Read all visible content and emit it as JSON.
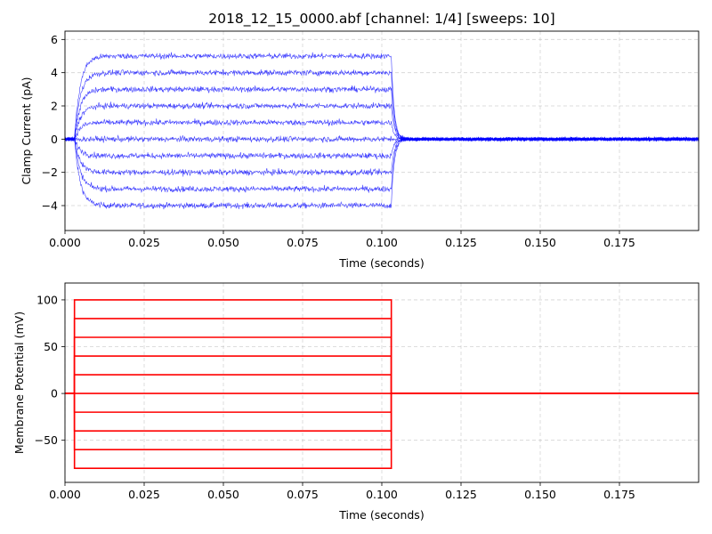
{
  "figure_title": "2018_12_15_0000.abf [channel: 1/4] [sweeps: 10]",
  "colors": {
    "current": "#0000ff",
    "voltage": "#ff0000",
    "grid": "#b0b0b0"
  },
  "chart_data": [
    {
      "type": "line",
      "panel": "top",
      "title": "2018_12_15_0000.abf [channel: 1/4] [sweeps: 10]",
      "xlabel": "Time (seconds)",
      "ylabel": "Clamp Current (pA)",
      "xlim": [
        0,
        0.2
      ],
      "ylim": [
        -5.5,
        6.5
      ],
      "xticks": [
        "0.000",
        "0.025",
        "0.050",
        "0.075",
        "0.100",
        "0.125",
        "0.150",
        "0.175"
      ],
      "yticks": [
        "−4",
        "−2",
        "0",
        "2",
        "4",
        "6"
      ],
      "grid": true,
      "step_on": 0.003,
      "step_off": 0.103,
      "series": [
        {
          "plateau": -4.0
        },
        {
          "plateau": -3.0
        },
        {
          "plateau": -2.0
        },
        {
          "plateau": -1.0
        },
        {
          "plateau": 0.0
        },
        {
          "plateau": 1.0
        },
        {
          "plateau": 2.0
        },
        {
          "plateau": 3.0
        },
        {
          "plateau": 4.0
        },
        {
          "plateau": 5.0
        }
      ]
    },
    {
      "type": "line",
      "panel": "bottom",
      "xlabel": "Time (seconds)",
      "ylabel": "Membrane Potential (mV)",
      "xlim": [
        0,
        0.2
      ],
      "ylim": [
        -95,
        118
      ],
      "xticks": [
        "0.000",
        "0.025",
        "0.050",
        "0.075",
        "0.100",
        "0.125",
        "0.150",
        "0.175"
      ],
      "yticks": [
        "−50",
        "0",
        "50",
        "100"
      ],
      "grid": true,
      "step_on": 0.003,
      "step_off": 0.103,
      "series": [
        {
          "level": -80
        },
        {
          "level": -60
        },
        {
          "level": -40
        },
        {
          "level": -20
        },
        {
          "level": 0
        },
        {
          "level": 20
        },
        {
          "level": 40
        },
        {
          "level": 60
        },
        {
          "level": 80
        },
        {
          "level": 100
        }
      ]
    }
  ]
}
